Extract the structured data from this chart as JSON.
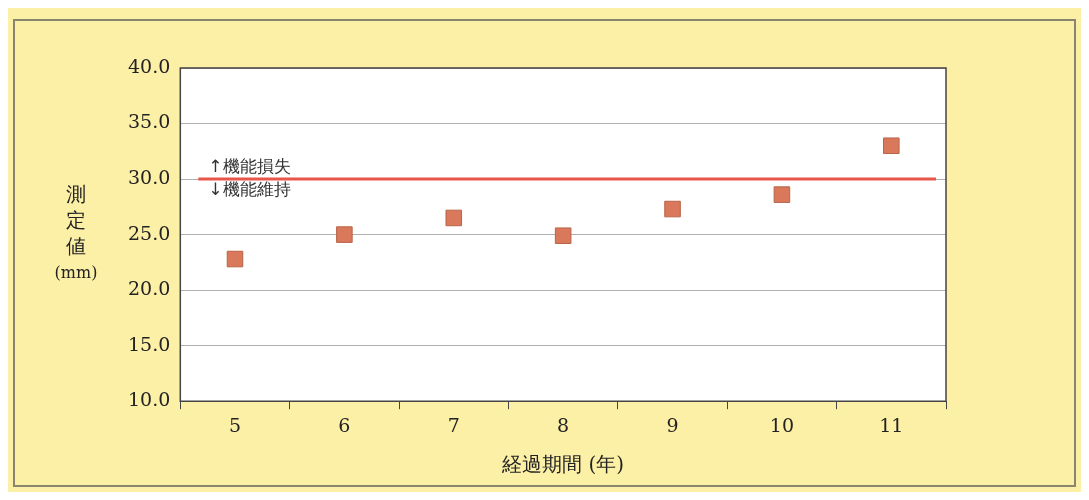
{
  "chart_data": {
    "type": "scatter",
    "xlabel": "経過期間 (年)",
    "ylabel": "測定値(mm)",
    "categories": [
      "5",
      "6",
      "7",
      "8",
      "9",
      "10",
      "11"
    ],
    "series": [
      {
        "color": "#d9785a",
        "values": [
          22.8,
          25.0,
          26.5,
          24.9,
          27.3,
          28.6,
          33.0
        ]
      }
    ],
    "ylim": [
      10,
      40
    ],
    "yticks": [
      {
        "value": 10,
        "label": "10.0"
      },
      {
        "value": 15,
        "label": "15.0"
      },
      {
        "value": 20,
        "label": "20.0"
      },
      {
        "value": 25,
        "label": "25.0"
      },
      {
        "value": 30,
        "label": "30.0"
      },
      {
        "value": 35,
        "label": "35.0"
      },
      {
        "value": 40,
        "label": "40.0"
      }
    ],
    "ref_lines": [
      {
        "axis": "y",
        "value": 30,
        "label": "↑機能損失",
        "color": "#e8564a"
      }
    ],
    "annotations": [
      "↓機能維持"
    ],
    "grid": "y",
    "marker": "square",
    "legend": false
  }
}
